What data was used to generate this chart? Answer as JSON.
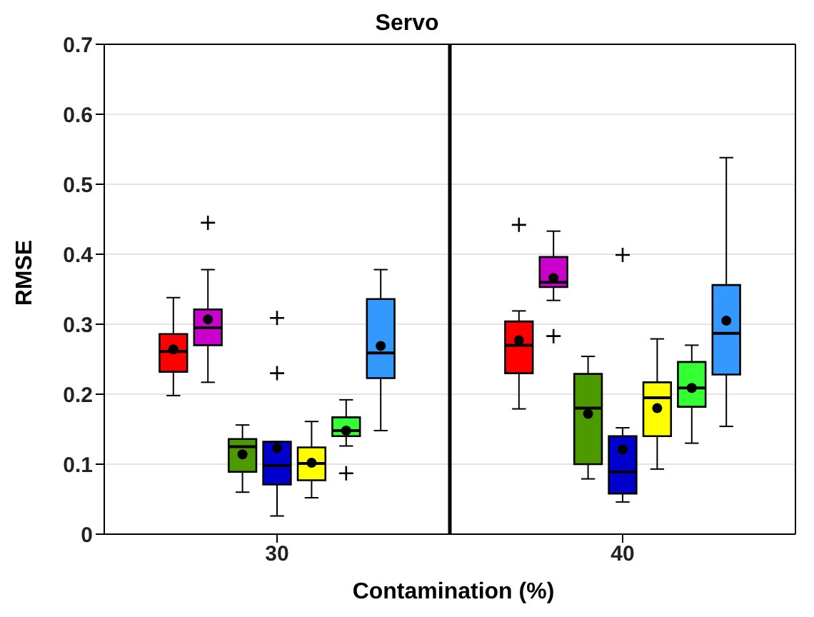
{
  "chart_data": {
    "type": "box",
    "title": "Servo",
    "xlabel": "Contamination (%)",
    "ylabel": "RMSE",
    "x": [
      30,
      40
    ],
    "xlim": [
      25,
      45
    ],
    "xticks": [
      30,
      40
    ],
    "ylim": [
      0,
      0.7
    ],
    "yticks": [
      0,
      0.1,
      0.2,
      0.3,
      0.4,
      0.5,
      0.6,
      0.7
    ],
    "grid": "y",
    "ref_lines": [
      {
        "axis": "x",
        "value": 35,
        "color": "#000000"
      }
    ],
    "series": [
      {
        "color": "#ff0000",
        "boxes": [
          {
            "low": 0.198,
            "q1": 0.232,
            "median": 0.261,
            "q3": 0.286,
            "high": 0.338,
            "mean": 0.264
          },
          {
            "low": 0.179,
            "q1": 0.23,
            "median": 0.27,
            "q3": 0.304,
            "high": 0.319,
            "mean": 0.277,
            "outliers": [
              0.442
            ]
          }
        ]
      },
      {
        "color": "#cc00cc",
        "boxes": [
          {
            "low": 0.217,
            "q1": 0.27,
            "median": 0.295,
            "q3": 0.321,
            "high": 0.378,
            "mean": 0.307,
            "outliers": [
              0.445
            ]
          },
          {
            "low": 0.334,
            "q1": 0.353,
            "median": 0.36,
            "q3": 0.396,
            "high": 0.433,
            "mean": 0.366,
            "outliers": [
              0.283
            ]
          }
        ]
      },
      {
        "color": "#4d9900",
        "boxes": [
          {
            "low": 0.06,
            "q1": 0.089,
            "median": 0.125,
            "q3": 0.136,
            "high": 0.156,
            "mean": 0.114
          },
          {
            "low": 0.079,
            "q1": 0.1,
            "median": 0.18,
            "q3": 0.229,
            "high": 0.254,
            "mean": 0.172
          }
        ]
      },
      {
        "color": "#0000cc",
        "boxes": [
          {
            "low": 0.026,
            "q1": 0.071,
            "median": 0.098,
            "q3": 0.132,
            "high": 0.132,
            "mean": 0.123,
            "outliers": [
              0.309,
              0.23
            ]
          },
          {
            "low": 0.046,
            "q1": 0.058,
            "median": 0.089,
            "q3": 0.14,
            "high": 0.152,
            "mean": 0.121,
            "outliers": [
              0.399
            ]
          }
        ]
      },
      {
        "color": "#ffff00",
        "boxes": [
          {
            "low": 0.052,
            "q1": 0.077,
            "median": 0.101,
            "q3": 0.124,
            "high": 0.161,
            "mean": 0.102
          },
          {
            "low": 0.093,
            "q1": 0.14,
            "median": 0.195,
            "q3": 0.217,
            "high": 0.279,
            "mean": 0.18
          }
        ]
      },
      {
        "color": "#33ff33",
        "boxes": [
          {
            "low": 0.126,
            "q1": 0.14,
            "median": 0.148,
            "q3": 0.167,
            "high": 0.192,
            "mean": 0.148,
            "outliers": [
              0.087
            ]
          },
          {
            "low": 0.13,
            "q1": 0.182,
            "median": 0.209,
            "q3": 0.246,
            "high": 0.27,
            "mean": 0.209
          }
        ]
      },
      {
        "color": "#3399ff",
        "boxes": [
          {
            "low": 0.148,
            "q1": 0.223,
            "median": 0.259,
            "q3": 0.336,
            "high": 0.378,
            "mean": 0.269
          },
          {
            "low": 0.154,
            "q1": 0.228,
            "median": 0.287,
            "q3": 0.356,
            "high": 0.538,
            "mean": 0.305
          }
        ]
      }
    ]
  }
}
